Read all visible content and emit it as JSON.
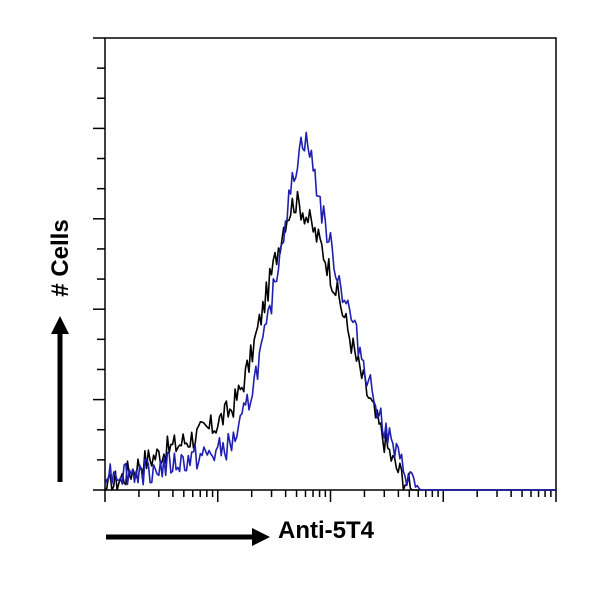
{
  "chart_data": {
    "type": "line",
    "title": "",
    "xlabel": "Anti-5T4",
    "ylabel": "# Cells",
    "x_scale": "log",
    "xlim": [
      0,
      1
    ],
    "ylim": [
      0,
      1
    ],
    "grid": false,
    "legend": "none",
    "series": [
      {
        "color": "#000000",
        "x": [
          0.0,
          0.04,
          0.08,
          0.12,
          0.16,
          0.2,
          0.24,
          0.28,
          0.3,
          0.32,
          0.34,
          0.36,
          0.38,
          0.4,
          0.42,
          0.44,
          0.46,
          0.47,
          0.48,
          0.5,
          0.52,
          0.54,
          0.56,
          0.58,
          0.6,
          0.62,
          0.64,
          0.66,
          0.68,
          1.0
        ],
        "y": [
          0.0,
          0.03,
          0.06,
          0.08,
          0.1,
          0.12,
          0.14,
          0.18,
          0.22,
          0.28,
          0.36,
          0.44,
          0.52,
          0.6,
          0.64,
          0.62,
          0.58,
          0.56,
          0.54,
          0.48,
          0.42,
          0.35,
          0.28,
          0.22,
          0.16,
          0.11,
          0.06,
          0.03,
          0.0,
          0.0
        ]
      },
      {
        "color": "#1f1fb0",
        "x": [
          0.0,
          0.04,
          0.08,
          0.12,
          0.16,
          0.2,
          0.24,
          0.28,
          0.3,
          0.32,
          0.34,
          0.36,
          0.38,
          0.4,
          0.42,
          0.43,
          0.44,
          0.45,
          0.46,
          0.48,
          0.5,
          0.52,
          0.54,
          0.56,
          0.58,
          0.6,
          0.62,
          0.64,
          0.66,
          0.68,
          0.7,
          0.72,
          1.0
        ],
        "y": [
          0.04,
          0.04,
          0.04,
          0.05,
          0.06,
          0.07,
          0.08,
          0.1,
          0.14,
          0.2,
          0.28,
          0.36,
          0.48,
          0.6,
          0.7,
          0.75,
          0.78,
          0.76,
          0.72,
          0.62,
          0.54,
          0.46,
          0.4,
          0.33,
          0.26,
          0.2,
          0.14,
          0.09,
          0.05,
          0.02,
          0.0,
          0.0,
          0.0
        ]
      }
    ]
  }
}
